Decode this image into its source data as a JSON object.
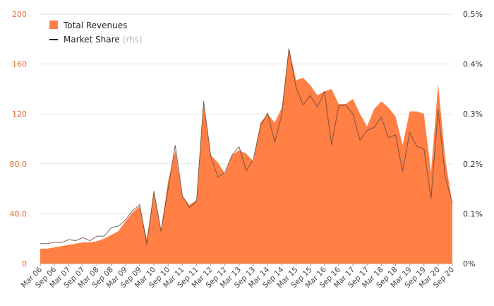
{
  "chart_data": {
    "type": "area",
    "title": "",
    "x_tick_labels": [
      "Mar 06",
      "Sep 06",
      "Mar 07",
      "Sep 07",
      "Mar 08",
      "Sep 08",
      "Mar 09",
      "Sep 09",
      "Mar 10",
      "Sep 10",
      "Mar 11",
      "Sep 11",
      "Mar 12",
      "Sep 12",
      "Mar 13",
      "Sep 13",
      "Mar 14",
      "Sep 14",
      "Mar 15",
      "Sep 15",
      "Mar 16",
      "Sep 16",
      "Mar 17",
      "Sep 17",
      "Mar 18",
      "Sep 18",
      "Mar 19",
      "Sep 19",
      "Mar 20",
      "Sep 20"
    ],
    "y_left": {
      "ylim": [
        0,
        200
      ],
      "tick_values": [
        0,
        40,
        80,
        120,
        160,
        200
      ],
      "tick_labels": [
        "0",
        "40.0",
        "80.0",
        "120",
        "160",
        "200"
      ]
    },
    "y_right": {
      "ylim": [
        0,
        0.5
      ],
      "tick_values": [
        0,
        0.1,
        0.2,
        0.3,
        0.4,
        0.5
      ],
      "tick_labels": [
        "0%",
        "0.1%",
        "0.2%",
        "0.3%",
        "0.4%",
        "0.5%"
      ]
    },
    "legend": {
      "position": "top-left"
    },
    "series": [
      {
        "name": "Total Revenues",
        "axis": "left",
        "kind": "area",
        "color": "#ff7f45",
        "values": [
          12,
          12,
          13,
          14,
          15,
          16,
          17,
          17,
          18,
          20,
          23,
          26,
          34,
          41,
          46,
          20,
          57,
          27,
          66,
          91,
          54,
          47,
          51,
          128,
          87,
          81,
          72,
          87,
          91,
          88,
          82,
          113,
          120,
          113,
          125,
          173,
          147,
          149,
          143,
          135,
          138,
          140,
          128,
          128,
          132,
          120,
          110,
          124,
          130,
          125,
          118,
          95,
          122,
          122,
          120,
          73,
          144,
          84,
          48
        ]
      },
      {
        "name": "Market Share",
        "label_note": "(rhs)",
        "axis": "right",
        "kind": "line",
        "color": "#6b4a3a",
        "values": [
          0.04,
          0.04,
          0.043,
          0.042,
          0.048,
          0.046,
          0.052,
          0.046,
          0.055,
          0.055,
          0.072,
          0.075,
          0.088,
          0.106,
          0.118,
          0.038,
          0.145,
          0.065,
          0.15,
          0.237,
          0.136,
          0.112,
          0.125,
          0.325,
          0.215,
          0.173,
          0.183,
          0.218,
          0.234,
          0.186,
          0.21,
          0.276,
          0.302,
          0.243,
          0.299,
          0.431,
          0.353,
          0.318,
          0.337,
          0.314,
          0.345,
          0.238,
          0.316,
          0.318,
          0.3,
          0.247,
          0.267,
          0.273,
          0.294,
          0.252,
          0.258,
          0.185,
          0.263,
          0.235,
          0.23,
          0.13,
          0.308,
          0.174,
          0.121
        ]
      }
    ]
  },
  "legend": {
    "revenues_label": "Total Revenues",
    "share_label": "Market Share",
    "share_note": "(rhs)"
  },
  "colors": {
    "area": "#ff7f45",
    "line": "#6b4a3a",
    "grid": "#e6e6e6",
    "left_ticks": "#e8692e"
  }
}
